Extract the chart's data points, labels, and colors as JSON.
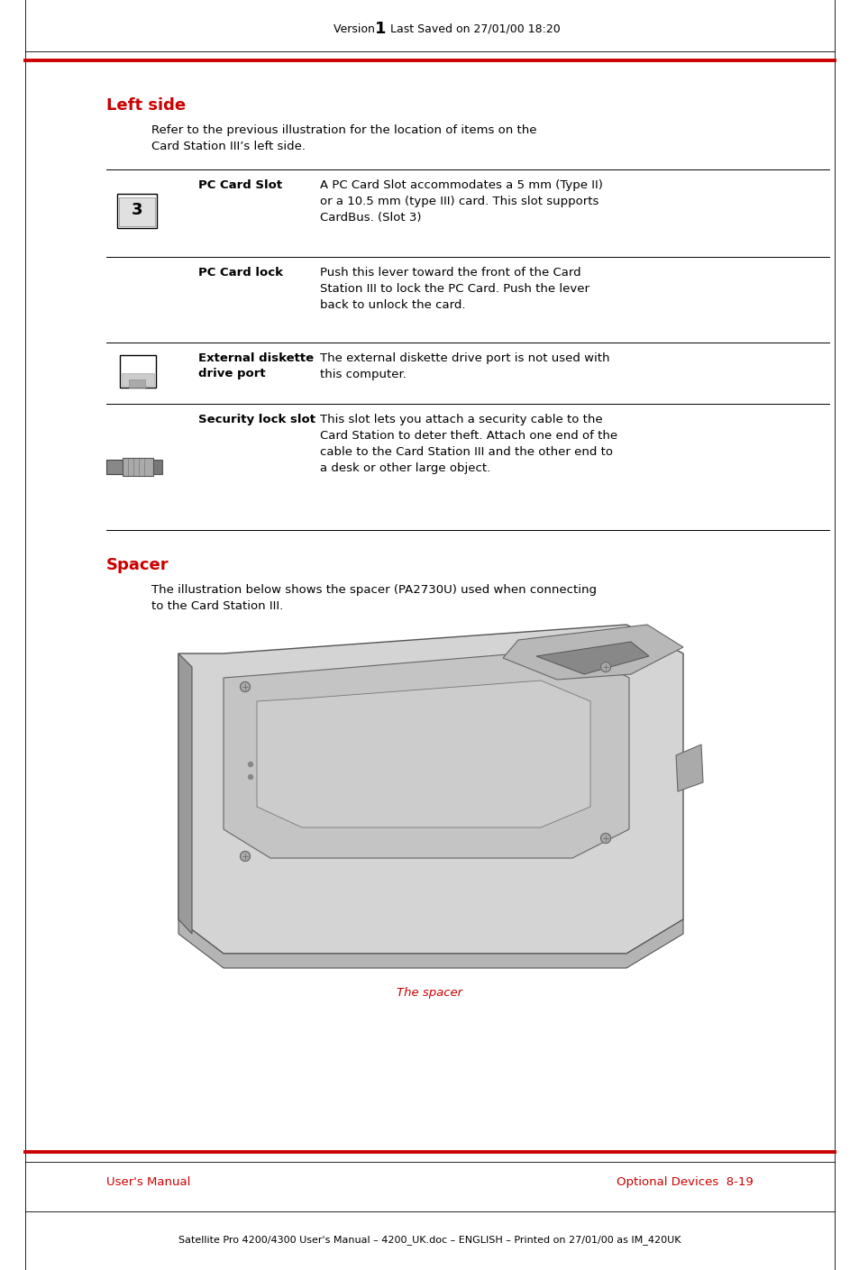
{
  "bg_color": "#ffffff",
  "header_version_text": "Version  ",
  "header_version_num": "1",
  "header_date_text": "  Last Saved on 27/01/00 18:20",
  "footer_left": "User's Manual",
  "footer_right": "Optional Devices  8-19",
  "bottom_text": "Satellite Pro 4200/4300 User's Manual – 4200_UK.doc – ENGLISH – Printed on 27/01/00 as IM_420UK",
  "bottom_text_bold": "IM_420UK",
  "left_side_title": "Left side",
  "title_color": "#cc0000",
  "intro_text": "Refer to the previous illustration for the location of items on the\nCard Station III’s left side.",
  "table_items": [
    {
      "has_icon": true,
      "icon_type": "pc_card_slot",
      "label": "PC Card Slot",
      "desc": "A PC Card Slot accommodates a 5 mm (Type II)\nor a 10.5 mm (type III) card. This slot supports\nCardBus. (Slot 3)",
      "desc_bold": "Slot 3"
    },
    {
      "has_icon": false,
      "icon_type": null,
      "label": "PC Card lock",
      "desc": "Push this lever toward the front of the Card\nStation III to lock the PC Card. Push the lever\nback to unlock the card.",
      "desc_bold": null
    },
    {
      "has_icon": true,
      "icon_type": "diskette",
      "label": "External diskette\ndrive port",
      "desc": "The external diskette drive port is not used with\nthis computer.",
      "desc_bold": null
    },
    {
      "has_icon": true,
      "icon_type": "security",
      "label": "Security lock slot",
      "desc": "This slot lets you attach a security cable to the\nCard Station to deter theft. Attach one end of the\ncable to the Card Station III and the other end to\na desk or other large object.",
      "desc_bold": null
    }
  ],
  "spacer_title": "Spacer",
  "spacer_intro": "The illustration below shows the spacer (PA2730U) used when connecting\nto the Card Station III.",
  "spacer_caption": "The spacer"
}
